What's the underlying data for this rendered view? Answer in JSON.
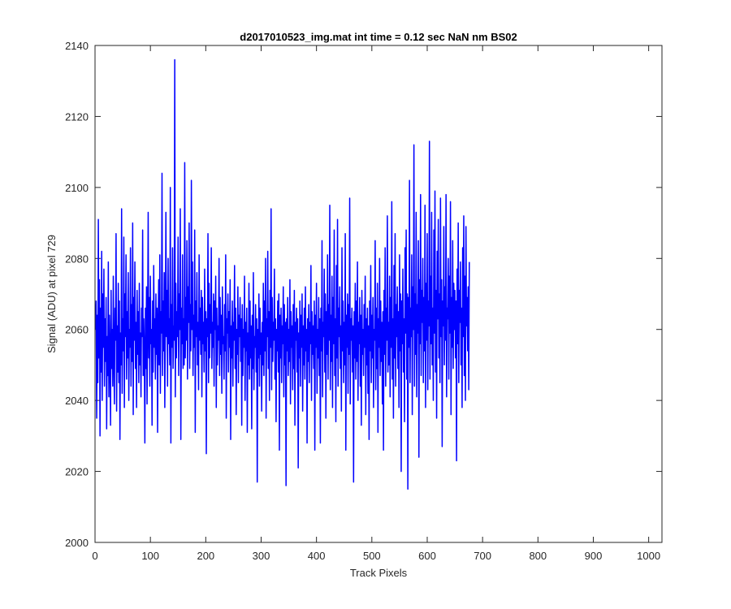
{
  "chart_data": {
    "type": "line",
    "title": "d2017010523_img.mat int time = 0.12 sec  NaN nm BS02",
    "xlabel": "Track Pixels",
    "ylabel": "Signal (ADU) at pixel 729",
    "xlim": [
      0,
      1024
    ],
    "ylim": [
      2000,
      2140
    ],
    "xticks": [
      0,
      100,
      200,
      300,
      400,
      500,
      600,
      700,
      800,
      900,
      1000
    ],
    "yticks": [
      2000,
      2020,
      2040,
      2060,
      2080,
      2100,
      2120,
      2140
    ],
    "grid": false,
    "legend": "none",
    "series": [
      {
        "color": "#0000ff",
        "x_start": 1,
        "x_step": 1,
        "values": [
          2060,
          2068,
          2035,
          2064,
          2045,
          2091,
          2052,
          2074,
          2030,
          2066,
          2048,
          2082,
          2040,
          2070,
          2055,
          2077,
          2044,
          2063,
          2051,
          2069,
          2032,
          2058,
          2047,
          2079,
          2041,
          2064,
          2053,
          2033,
          2071,
          2049,
          2060,
          2044,
          2075,
          2052,
          2039,
          2066,
          2057,
          2087,
          2037,
          2061,
          2048,
          2073,
          2045,
          2068,
          2029,
          2059,
          2050,
          2094,
          2042,
          2063,
          2054,
          2086,
          2038,
          2070,
          2058,
          2081,
          2046,
          2065,
          2052,
          2076,
          2040,
          2060,
          2055,
          2083,
          2044,
          2067,
          2051,
          2090,
          2036,
          2069,
          2057,
          2079,
          2049,
          2062,
          2038,
          2071,
          2053,
          2065,
          2045,
          2073,
          2050,
          2059,
          2041,
          2066,
          2058,
          2088,
          2047,
          2063,
          2054,
          2028,
          2066,
          2049,
          2072,
          2039,
          2061,
          2093,
          2052,
          2069,
          2044,
          2075,
          2056,
          2060,
          2033,
          2068,
          2048,
          2078,
          2055,
          2063,
          2046,
          2070,
          2053,
          2066,
          2031,
          2061,
          2074,
          2050,
          2081,
          2042,
          2065,
          2059,
          2104,
          2047,
          2068,
          2054,
          2076,
          2038,
          2062,
          2093,
          2058,
          2071,
          2044,
          2080,
          2056,
          2063,
          2050,
          2100,
          2028,
          2067,
          2055,
          2083,
          2049,
          2061,
          2057,
          2136,
          2041,
          2073,
          2052,
          2065,
          2058,
          2086,
          2047,
          2070,
          2060,
          2094,
          2029,
          2066,
          2056,
          2081,
          2049,
          2063,
          2050,
          2107,
          2052,
          2069,
          2057,
          2085,
          2046,
          2072,
          2062,
          2090,
          2049,
          2067,
          2054,
          2102,
          2060,
          2079,
          2047,
          2064,
          2055,
          2088,
          2031,
          2068,
          2058,
          2076,
          2050,
          2062,
          2043,
          2081,
          2057,
          2066,
          2053,
          2071,
          2041,
          2069,
          2056,
          2062,
          2048,
          2077,
          2054,
          2065,
          2025,
          2063,
          2058,
          2087,
          2045,
          2073,
          2052,
          2067,
          2059,
          2083,
          2049,
          2062,
          2055,
          2070,
          2044,
          2068,
          2060,
          2075,
          2038,
          2066,
          2050,
          2061,
          2057,
          2080,
          2047,
          2069,
          2053,
          2064,
          2042,
          2072,
          2056,
          2058,
          2046,
          2067,
          2054,
          2081,
          2035,
          2063,
          2059,
          2070,
          2048,
          2065,
          2055,
          2074,
          2029,
          2061,
          2052,
          2068,
          2044,
          2062,
          2057,
          2078,
          2049,
          2066,
          2036,
          2060,
          2053,
          2072,
          2045,
          2064,
          2058,
          2069,
          2051,
          2063,
          2033,
          2067,
          2047,
          2060,
          2055,
          2075,
          2040,
          2062,
          2054,
          2066,
          2031,
          2059,
          2050,
          2073,
          2046,
          2068,
          2052,
          2061,
          2032,
          2064,
          2049,
          2076,
          2043,
          2058,
          2055,
          2067,
          2048,
          2063,
          2017,
          2060,
          2052,
          2070,
          2044,
          2066,
          2053,
          2059,
          2037,
          2062,
          2050,
          2073,
          2047,
          2068,
          2054,
          2080,
          2035,
          2063,
          2058,
          2082,
          2049,
          2065,
          2040,
          2071,
          2055,
          2094,
          2043,
          2069,
          2051,
          2062,
          2057,
          2077,
          2046,
          2063,
          2034,
          2060,
          2054,
          2068,
          2048,
          2070,
          2026,
          2064,
          2052,
          2066,
          2045,
          2061,
          2056,
          2072,
          2041,
          2067,
          2050,
          2062,
          2016,
          2063,
          2054,
          2069,
          2047,
          2060,
          2051,
          2074,
          2039,
          2065,
          2055,
          2061,
          2043,
          2067,
          2049,
          2071,
          2033,
          2062,
          2057,
          2066,
          2048,
          2063,
          2021,
          2059,
          2052,
          2068,
          2044,
          2064,
          2055,
          2070,
          2037,
          2061,
          2050,
          2066,
          2046,
          2072,
          2054,
          2060,
          2028,
          2063,
          2051,
          2067,
          2045,
          2062,
          2056,
          2078,
          2040,
          2065,
          2053,
          2061,
          2049,
          2068,
          2026,
          2064,
          2055,
          2073,
          2042,
          2060,
          2052,
          2069,
          2047,
          2063,
          2028,
          2066,
          2054,
          2085,
          2041,
          2062,
          2058,
          2077,
          2048,
          2070,
          2035,
          2065,
          2053,
          2081,
          2046,
          2067,
          2057,
          2095,
          2043,
          2064,
          2051,
          2075,
          2038,
          2069,
          2056,
          2088,
          2047,
          2063,
          2034,
          2078,
          2052,
          2091,
          2044,
          2066,
          2058,
          2072,
          2049,
          2061,
          2037,
          2083,
          2054,
          2068,
          2045,
          2062,
          2050,
          2087,
          2026,
          2064,
          2055,
          2070,
          2042,
          2067,
          2053,
          2097,
          2039,
          2063,
          2057,
          2066,
          2048,
          2061,
          2017,
          2065,
          2052,
          2073,
          2046,
          2068,
          2051,
          2079,
          2040,
          2062,
          2056,
          2069,
          2044,
          2064,
          2033,
          2071,
          2053,
          2060,
          2047,
          2067,
          2055,
          2075,
          2036,
          2063,
          2050,
          2066,
          2042,
          2061,
          2029,
          2068,
          2054,
          2078,
          2045,
          2064,
          2052,
          2069,
          2038,
          2060,
          2057,
          2085,
          2043,
          2066,
          2049,
          2073,
          2031,
          2063,
          2055,
          2080,
          2047,
          2068,
          2051,
          2062,
          2039,
          2065,
          2026,
          2071,
          2053,
          2083,
          2044,
          2066,
          2057,
          2092,
          2048,
          2062,
          2050,
          2075,
          2041,
          2069,
          2055,
          2096,
          2046,
          2063,
          2035,
          2078,
          2052,
          2087,
          2044,
          2067,
          2058,
          2072,
          2049,
          2065,
          2038,
          2081,
          2054,
          2070,
          2020,
          2068,
          2056,
          2077,
          2048,
          2063,
          2034,
          2083,
          2059,
          2088,
          2046,
          2070,
          2015,
          2069,
          2055,
          2102,
          2045,
          2066,
          2058,
          2081,
          2036,
          2072,
          2060,
          2112,
          2044,
          2070,
          2053,
          2093,
          2041,
          2067,
          2059,
          2085,
          2024,
          2074,
          2056,
          2098,
          2047,
          2071,
          2062,
          2080,
          2045,
          2069,
          2054,
          2095,
          2038,
          2073,
          2057,
          2087,
          2043,
          2068,
          2061,
          2113,
          2046,
          2075,
          2056,
          2093,
          2050,
          2066,
          2040,
          2088,
          2059,
          2099,
          2048,
          2071,
          2035,
          2082,
          2063,
          2091,
          2052,
          2070,
          2045,
          2097,
          2058,
          2074,
          2027,
          2068,
          2061,
          2089,
          2050,
          2072,
          2057,
          2098,
          2041,
          2066,
          2063,
          2080,
          2046,
          2075,
          2059,
          2096,
          2036,
          2069,
          2055,
          2085,
          2049,
          2073,
          2060,
          2071,
          2052,
          2068,
          2023,
          2077,
          2056,
          2090,
          2045,
          2071,
          2062,
          2079,
          2050,
          2066,
          2038,
          2083,
          2058,
          2092,
          2047,
          2075,
          2040,
          2089,
          2061,
          2069,
          2054,
          2072,
          2043,
          2079
        ]
      }
    ]
  }
}
